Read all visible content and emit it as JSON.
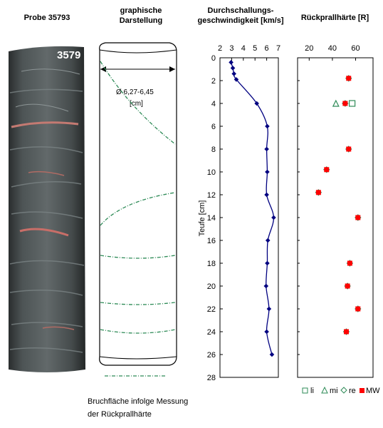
{
  "headers": {
    "probe": "Probe 35793",
    "graph_line1": "graphische",
    "graph_line2": "Darstellung",
    "velo_line1": "Durchschallungs-",
    "velo_line2": "geschwindigkeit [km/s]",
    "rebound": "Rückprallhärte [R]"
  },
  "core": {
    "sample_label": "3579",
    "diameter_label": "Ø 6,27-6,45",
    "diameter_unit": "[cm]"
  },
  "bottom_note": {
    "line1": "Bruchfläche infolge Messung",
    "line2": "der Rückprallhärte"
  },
  "colors": {
    "fracture": "#2e8b57",
    "velocity": "#000080",
    "mw": "#ff0000",
    "legend_green": "#2e8b57"
  },
  "chart_data": [
    {
      "type": "line",
      "title": "Durchschallungsgeschwindigkeit [km/s]",
      "ylabel": "Teufe [cm]",
      "xlim": [
        2,
        7
      ],
      "ylim": [
        0,
        28
      ],
      "y_inverted": true,
      "x_ticks": [
        "2",
        "3",
        "4",
        "5",
        "6",
        "7"
      ],
      "y_ticks": [
        "0",
        "2",
        "4",
        "6",
        "8",
        "10",
        "12",
        "14",
        "16",
        "18",
        "20",
        "22",
        "24",
        "26",
        "28"
      ],
      "series": [
        {
          "x": [
            2.95,
            3.1,
            3.2,
            3.4,
            5.15,
            6.05,
            6.0,
            6.05,
            6.0,
            6.6,
            6.1,
            6.05,
            5.95,
            6.2,
            6.0,
            6.45
          ],
          "y": [
            0.4,
            0.9,
            1.4,
            1.9,
            4.0,
            6.0,
            8.0,
            10.0,
            12.0,
            14.0,
            16.0,
            18.0,
            20.0,
            22.0,
            24.0,
            26.0
          ]
        }
      ]
    },
    {
      "type": "scatter",
      "title": "Rückprallhärte [R]",
      "xlim": [
        10,
        75
      ],
      "ylim": [
        0,
        28
      ],
      "y_inverted": true,
      "x_ticks": [
        "20",
        "40",
        "60"
      ],
      "legend_position": "bottom",
      "series": [
        {
          "name": "li",
          "marker": "square-open",
          "x": [
            57
          ],
          "y": [
            4
          ]
        },
        {
          "name": "mi",
          "marker": "triangle-open",
          "x": [
            43
          ],
          "y": [
            4
          ]
        },
        {
          "name": "re",
          "marker": "diamond-open",
          "x": [],
          "y": []
        },
        {
          "name": "MW",
          "marker": "square-filled",
          "x": [
            54,
            51,
            54,
            35,
            28,
            62,
            55,
            53,
            62,
            52
          ],
          "y": [
            1.8,
            4.0,
            8.0,
            9.8,
            11.8,
            14.0,
            18.0,
            20.0,
            22.0,
            24.0
          ]
        }
      ]
    }
  ]
}
